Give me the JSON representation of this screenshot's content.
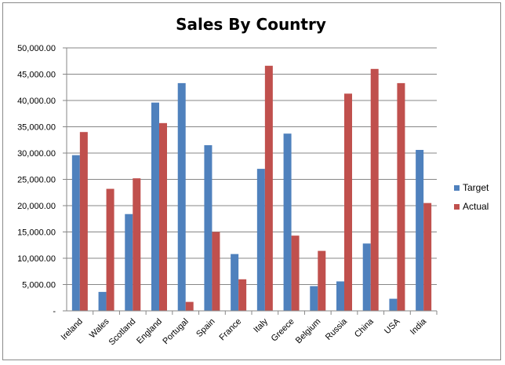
{
  "chart_data": {
    "type": "bar",
    "title": "Sales By Country",
    "categories": [
      "Ireland",
      "Wales",
      "Scotland",
      "England",
      "Portugal",
      "Spain",
      "France",
      "Italy",
      "Greece",
      "Belgium",
      "Russia",
      "China",
      "USA",
      "India"
    ],
    "series": [
      {
        "name": "Target",
        "color": "#4f81bd",
        "values": [
          29600,
          3600,
          18400,
          39600,
          43300,
          31500,
          10800,
          27000,
          33700,
          4700,
          5600,
          12800,
          2300,
          30600
        ]
      },
      {
        "name": "Actual",
        "color": "#c0504d",
        "values": [
          34000,
          23200,
          25200,
          35700,
          1700,
          15000,
          6000,
          46600,
          14300,
          11400,
          41300,
          46000,
          43300,
          20500
        ]
      }
    ],
    "yticks": [
      "-",
      "5,000.00",
      "10,000.00",
      "15,000.00",
      "20,000.00",
      "25,000.00",
      "30,000.00",
      "35,000.00",
      "40,000.00",
      "45,000.00",
      "50,000.00"
    ],
    "ylim": [
      0,
      50000
    ],
    "xlabel": "",
    "ylabel": "",
    "grid": true,
    "legend": "right"
  }
}
